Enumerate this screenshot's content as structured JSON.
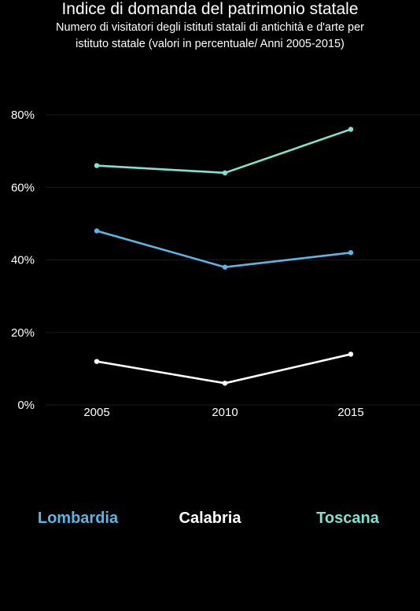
{
  "chart_data": {
    "type": "line",
    "title": "Indice di domanda del patrimonio statale",
    "subtitle": [
      "Numero di visitatori degli istituti statali di antichità e d'arte per",
      "istituto statale (valori in percentuale/ Anni 2005-2015)"
    ],
    "x": [
      "2005",
      "2010",
      "2015"
    ],
    "y_ticks": [
      "0%",
      "20%",
      "40%",
      "60%",
      "80%"
    ],
    "y_tick_values": [
      0,
      20,
      40,
      60,
      80
    ],
    "ylim": [
      0,
      80
    ],
    "grid": true,
    "legend_position": "bottom",
    "series": [
      {
        "name": "Lombardia",
        "color": "#5bb6e6",
        "values": [
          48,
          38,
          42
        ]
      },
      {
        "name": "Calabria",
        "color": "#ffffff",
        "values": [
          12,
          6,
          14
        ]
      },
      {
        "name": "Toscana",
        "color": "#7ee3d0",
        "values": [
          66,
          64,
          76
        ]
      }
    ]
  }
}
